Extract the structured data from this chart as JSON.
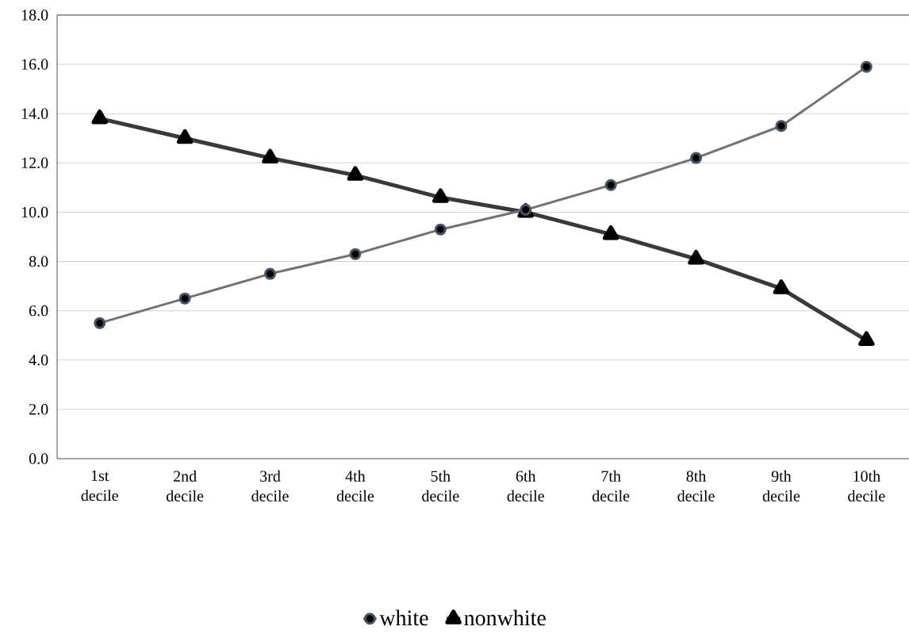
{
  "chart_data": {
    "type": "line",
    "categories": [
      "1st decile",
      "2nd decile",
      "3rd decile",
      "4th decile",
      "5th decile",
      "6th decile",
      "7th decile",
      "8th decile",
      "9th decile",
      "10th decile"
    ],
    "series": [
      {
        "name": "white",
        "color": "#767171",
        "marker": "circle",
        "values": [
          5.5,
          6.5,
          7.5,
          8.3,
          9.3,
          10.1,
          11.1,
          12.2,
          13.5,
          15.9
        ]
      },
      {
        "name": "nonwhite",
        "color": "#3a3838",
        "marker": "triangle",
        "values": [
          13.8,
          13.0,
          12.2,
          11.5,
          10.6,
          10.0,
          9.1,
          8.1,
          6.9,
          4.8
        ]
      }
    ],
    "ylim": [
      0,
      18
    ],
    "yticks": [
      {
        "value": 0,
        "label": "0.0"
      },
      {
        "value": 2,
        "label": "2.0"
      },
      {
        "value": 4,
        "label": "4.0"
      },
      {
        "value": 6,
        "label": "6.0"
      },
      {
        "value": 8,
        "label": "8.0"
      },
      {
        "value": 10,
        "label": "10.0"
      },
      {
        "value": 12,
        "label": "12.0"
      },
      {
        "value": 14,
        "label": "14.0"
      },
      {
        "value": 16,
        "label": "16.0"
      },
      {
        "value": 18,
        "label": "18.0"
      }
    ],
    "grid": "y",
    "legend": "bottom"
  }
}
